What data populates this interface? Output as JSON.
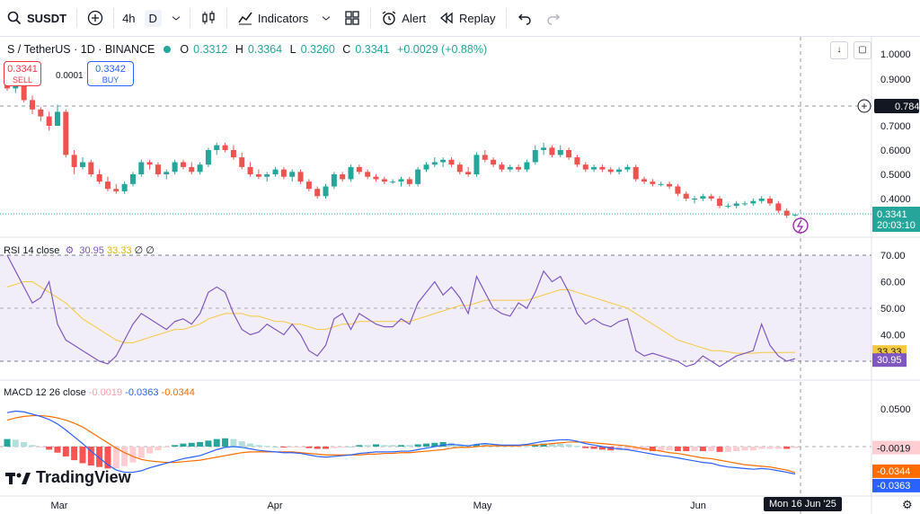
{
  "toolbar": {
    "symbol": "SUSDT",
    "interval_4h": "4h",
    "interval_d": "D",
    "indicators_label": "Indicators",
    "alert_label": "Alert",
    "replay_label": "Replay"
  },
  "legend": {
    "title": "S / TetherUS · 1D · BINANCE",
    "o_key": "O",
    "o_val": "0.3312",
    "h_key": "H",
    "h_val": "0.3364",
    "l_key": "L",
    "l_val": "0.3260",
    "c_key": "C",
    "c_val": "0.3341",
    "change": "+0.0029 (+0.88%)"
  },
  "trade": {
    "sell_price": "0.3341",
    "sell_label": "SELL",
    "buy_price": "0.3342",
    "buy_label": "BUY",
    "spread": "0.0001"
  },
  "price_axis": {
    "ticks": [
      "1.0000",
      "0.9000",
      "0.7000",
      "0.6000",
      "0.5000",
      "0.4000"
    ],
    "crosshair_price": "0.7842",
    "last_price": "0.3341",
    "countdown": "20:03:10"
  },
  "rsi": {
    "label": "RSI 14 close",
    "value": "30.95",
    "ma_value": "33.33",
    "extra1": "∅",
    "extra2": "∅",
    "ticks": [
      "70.00",
      "60.00",
      "50.00",
      "40.00"
    ]
  },
  "macd": {
    "label": "MACD 12 26 close",
    "hist_value": "-0.0019",
    "macd_value": "-0.0363",
    "signal_value": "-0.0344",
    "ticks": [
      "0.0500"
    ]
  },
  "time_axis": {
    "labels": [
      "Mar",
      "Apr",
      "May",
      "Jun"
    ],
    "crosshair_date": "Mon 16 Jun '25"
  },
  "logo": "TradingView",
  "colors": {
    "up": "#26a69a",
    "down": "#ef5350",
    "rsi": "#7e57c2",
    "rsi_ma": "#f5c842",
    "macd": "#2962ff",
    "signal": "#ff6d00"
  },
  "chart_data": {
    "type": "candlestick",
    "candles": [
      [
        0.89,
        0.9,
        0.85,
        0.86
      ],
      [
        0.86,
        0.88,
        0.84,
        0.87
      ],
      [
        0.87,
        0.88,
        0.8,
        0.81
      ],
      [
        0.81,
        0.83,
        0.75,
        0.77
      ],
      [
        0.77,
        0.78,
        0.72,
        0.74
      ],
      [
        0.74,
        0.76,
        0.68,
        0.7
      ],
      [
        0.7,
        0.79,
        0.7,
        0.76
      ],
      [
        0.76,
        0.77,
        0.57,
        0.58
      ],
      [
        0.58,
        0.6,
        0.5,
        0.53
      ],
      [
        0.53,
        0.57,
        0.52,
        0.55
      ],
      [
        0.55,
        0.56,
        0.49,
        0.5
      ],
      [
        0.5,
        0.52,
        0.46,
        0.47
      ],
      [
        0.47,
        0.49,
        0.43,
        0.44
      ],
      [
        0.44,
        0.46,
        0.42,
        0.43
      ],
      [
        0.43,
        0.47,
        0.42,
        0.46
      ],
      [
        0.46,
        0.51,
        0.45,
        0.5
      ],
      [
        0.5,
        0.56,
        0.49,
        0.55
      ],
      [
        0.55,
        0.56,
        0.52,
        0.54
      ],
      [
        0.54,
        0.55,
        0.49,
        0.5
      ],
      [
        0.5,
        0.52,
        0.48,
        0.51
      ],
      [
        0.51,
        0.56,
        0.5,
        0.55
      ],
      [
        0.55,
        0.56,
        0.52,
        0.53
      ],
      [
        0.53,
        0.55,
        0.5,
        0.51
      ],
      [
        0.51,
        0.55,
        0.5,
        0.54
      ],
      [
        0.54,
        0.61,
        0.53,
        0.6
      ],
      [
        0.6,
        0.63,
        0.58,
        0.62
      ],
      [
        0.62,
        0.63,
        0.59,
        0.6
      ],
      [
        0.6,
        0.62,
        0.56,
        0.57
      ],
      [
        0.57,
        0.59,
        0.52,
        0.53
      ],
      [
        0.53,
        0.55,
        0.49,
        0.5
      ],
      [
        0.5,
        0.52,
        0.48,
        0.49
      ],
      [
        0.49,
        0.51,
        0.47,
        0.5
      ],
      [
        0.5,
        0.53,
        0.49,
        0.52
      ],
      [
        0.52,
        0.53,
        0.48,
        0.49
      ],
      [
        0.49,
        0.52,
        0.47,
        0.51
      ],
      [
        0.51,
        0.52,
        0.46,
        0.47
      ],
      [
        0.47,
        0.48,
        0.43,
        0.44
      ],
      [
        0.44,
        0.45,
        0.4,
        0.41
      ],
      [
        0.41,
        0.46,
        0.4,
        0.45
      ],
      [
        0.45,
        0.51,
        0.44,
        0.5
      ],
      [
        0.5,
        0.51,
        0.47,
        0.48
      ],
      [
        0.48,
        0.54,
        0.47,
        0.53
      ],
      [
        0.53,
        0.54,
        0.5,
        0.51
      ],
      [
        0.51,
        0.52,
        0.48,
        0.49
      ],
      [
        0.49,
        0.5,
        0.47,
        0.48
      ],
      [
        0.48,
        0.49,
        0.46,
        0.47
      ],
      [
        0.47,
        0.48,
        0.46,
        0.47
      ],
      [
        0.47,
        0.49,
        0.45,
        0.48
      ],
      [
        0.48,
        0.49,
        0.45,
        0.46
      ],
      [
        0.46,
        0.53,
        0.45,
        0.52
      ],
      [
        0.52,
        0.55,
        0.51,
        0.54
      ],
      [
        0.54,
        0.57,
        0.53,
        0.55
      ],
      [
        0.55,
        0.57,
        0.53,
        0.56
      ],
      [
        0.56,
        0.57,
        0.53,
        0.54
      ],
      [
        0.54,
        0.55,
        0.5,
        0.51
      ],
      [
        0.51,
        0.53,
        0.49,
        0.5
      ],
      [
        0.5,
        0.59,
        0.49,
        0.58
      ],
      [
        0.58,
        0.6,
        0.55,
        0.56
      ],
      [
        0.56,
        0.57,
        0.53,
        0.54
      ],
      [
        0.54,
        0.55,
        0.51,
        0.52
      ],
      [
        0.52,
        0.54,
        0.51,
        0.53
      ],
      [
        0.53,
        0.54,
        0.51,
        0.52
      ],
      [
        0.52,
        0.56,
        0.51,
        0.55
      ],
      [
        0.55,
        0.62,
        0.54,
        0.6
      ],
      [
        0.6,
        0.63,
        0.58,
        0.61
      ],
      [
        0.61,
        0.62,
        0.57,
        0.58
      ],
      [
        0.58,
        0.62,
        0.57,
        0.6
      ],
      [
        0.6,
        0.61,
        0.56,
        0.57
      ],
      [
        0.57,
        0.58,
        0.53,
        0.54
      ],
      [
        0.54,
        0.55,
        0.51,
        0.52
      ],
      [
        0.52,
        0.54,
        0.51,
        0.53
      ],
      [
        0.53,
        0.54,
        0.51,
        0.52
      ],
      [
        0.52,
        0.53,
        0.5,
        0.51
      ],
      [
        0.51,
        0.53,
        0.5,
        0.52
      ],
      [
        0.52,
        0.54,
        0.51,
        0.53
      ],
      [
        0.53,
        0.54,
        0.47,
        0.48
      ],
      [
        0.48,
        0.49,
        0.46,
        0.47
      ],
      [
        0.47,
        0.48,
        0.45,
        0.46
      ],
      [
        0.46,
        0.47,
        0.45,
        0.46
      ],
      [
        0.46,
        0.47,
        0.44,
        0.45
      ],
      [
        0.45,
        0.46,
        0.41,
        0.42
      ],
      [
        0.42,
        0.43,
        0.39,
        0.4
      ],
      [
        0.4,
        0.41,
        0.38,
        0.4
      ],
      [
        0.4,
        0.42,
        0.39,
        0.41
      ],
      [
        0.41,
        0.42,
        0.39,
        0.4
      ],
      [
        0.4,
        0.41,
        0.36,
        0.37
      ],
      [
        0.37,
        0.38,
        0.36,
        0.37
      ],
      [
        0.37,
        0.39,
        0.36,
        0.38
      ],
      [
        0.38,
        0.39,
        0.37,
        0.38
      ],
      [
        0.38,
        0.4,
        0.37,
        0.39
      ],
      [
        0.39,
        0.41,
        0.38,
        0.4
      ],
      [
        0.4,
        0.41,
        0.37,
        0.38
      ],
      [
        0.38,
        0.39,
        0.34,
        0.35
      ],
      [
        0.35,
        0.36,
        0.32,
        0.33
      ],
      [
        0.3312,
        0.3364,
        0.326,
        0.3341
      ]
    ],
    "rsi": [
      70,
      64,
      58,
      52,
      54,
      60,
      44,
      38,
      36,
      34,
      32,
      30,
      29,
      32,
      38,
      44,
      48,
      46,
      44,
      42,
      45,
      46,
      44,
      48,
      56,
      58,
      56,
      48,
      42,
      40,
      41,
      44,
      42,
      40,
      44,
      40,
      34,
      32,
      36,
      46,
      48,
      42,
      48,
      46,
      44,
      43,
      43,
      46,
      44,
      52,
      56,
      60,
      55,
      58,
      54,
      48,
      62,
      56,
      50,
      48,
      47,
      52,
      50,
      56,
      64,
      60,
      62,
      56,
      48,
      44,
      46,
      44,
      43,
      45,
      46,
      34,
      32,
      33,
      32,
      31,
      30,
      28,
      29,
      32,
      30,
      28,
      30,
      32,
      33,
      34,
      44,
      36,
      32,
      30,
      31
    ],
    "rsi_ma": [
      58,
      59,
      60,
      60,
      58,
      56,
      54,
      52,
      49,
      46,
      44,
      42,
      40,
      38,
      37,
      37,
      38,
      39,
      40,
      41,
      42,
      42,
      43,
      44,
      46,
      47,
      48,
      48,
      48,
      47,
      47,
      46,
      45,
      45,
      44,
      44,
      43,
      42,
      42,
      43,
      44,
      44,
      45,
      45,
      45,
      45,
      45,
      45,
      45,
      46,
      47,
      48,
      49,
      50,
      51,
      51,
      52,
      53,
      53,
      53,
      53,
      53,
      53,
      54,
      55,
      56,
      57,
      57,
      56,
      55,
      54,
      53,
      52,
      51,
      50,
      48,
      46,
      44,
      42,
      40,
      38,
      37,
      36,
      35,
      34,
      34,
      33.5,
      33,
      33,
      33,
      33.3,
      33.3,
      33.3,
      33.3,
      33.33
    ],
    "macd": [
      0.045,
      0.047,
      0.046,
      0.043,
      0.04,
      0.036,
      0.03,
      0.022,
      0.013,
      0.004,
      -0.006,
      -0.015,
      -0.024,
      -0.031,
      -0.034,
      -0.034,
      -0.032,
      -0.028,
      -0.025,
      -0.022,
      -0.019,
      -0.016,
      -0.014,
      -0.012,
      -0.008,
      -0.004,
      -0.001,
      0.0,
      -0.001,
      -0.003,
      -0.005,
      -0.006,
      -0.007,
      -0.008,
      -0.008,
      -0.009,
      -0.011,
      -0.013,
      -0.014,
      -0.013,
      -0.012,
      -0.011,
      -0.009,
      -0.008,
      -0.007,
      -0.007,
      -0.007,
      -0.006,
      -0.006,
      -0.004,
      -0.002,
      0.0,
      0.002,
      0.003,
      0.002,
      0.001,
      0.003,
      0.004,
      0.003,
      0.002,
      0.002,
      0.002,
      0.003,
      0.005,
      0.007,
      0.008,
      0.009,
      0.009,
      0.007,
      0.004,
      0.002,
      0.0,
      -0.002,
      -0.003,
      -0.004,
      -0.006,
      -0.008,
      -0.01,
      -0.012,
      -0.013,
      -0.015,
      -0.017,
      -0.019,
      -0.021,
      -0.022,
      -0.025,
      -0.027,
      -0.028,
      -0.029,
      -0.03,
      -0.029,
      -0.03,
      -0.032,
      -0.034,
      -0.0363
    ],
    "signal": [
      0.035,
      0.038,
      0.04,
      0.041,
      0.041,
      0.04,
      0.038,
      0.035,
      0.031,
      0.026,
      0.019,
      0.012,
      0.005,
      -0.002,
      -0.008,
      -0.013,
      -0.017,
      -0.019,
      -0.02,
      -0.021,
      -0.021,
      -0.02,
      -0.019,
      -0.018,
      -0.016,
      -0.014,
      -0.012,
      -0.01,
      -0.008,
      -0.007,
      -0.007,
      -0.007,
      -0.007,
      -0.007,
      -0.007,
      -0.008,
      -0.009,
      -0.01,
      -0.011,
      -0.011,
      -0.011,
      -0.011,
      -0.011,
      -0.01,
      -0.01,
      -0.009,
      -0.009,
      -0.008,
      -0.008,
      -0.007,
      -0.006,
      -0.005,
      -0.004,
      -0.002,
      -0.001,
      -0.001,
      0.0,
      0.001,
      0.001,
      0.001,
      0.001,
      0.001,
      0.002,
      0.002,
      0.003,
      0.004,
      0.005,
      0.006,
      0.006,
      0.006,
      0.005,
      0.004,
      0.003,
      0.002,
      0.001,
      -0.001,
      -0.003,
      -0.004,
      -0.006,
      -0.008,
      -0.009,
      -0.011,
      -0.013,
      -0.015,
      -0.016,
      -0.018,
      -0.02,
      -0.022,
      -0.024,
      -0.025,
      -0.026,
      -0.027,
      -0.029,
      -0.031,
      -0.0344
    ]
  }
}
